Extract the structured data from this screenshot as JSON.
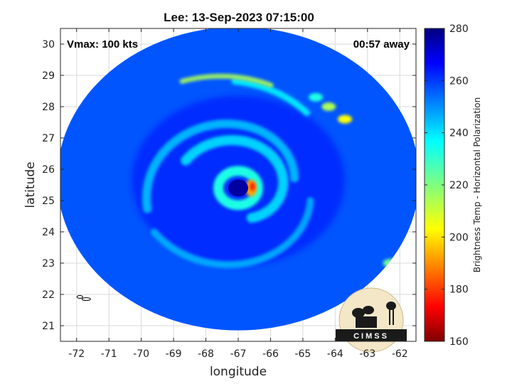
{
  "chart_data": {
    "type": "heatmap",
    "title": "Lee: 13-Sep-2023 07:15:00",
    "annotations": {
      "vmax": "Vmax: 100 kts",
      "time_away": "00:57 away"
    },
    "xlabel": "longitude",
    "ylabel": "latitude",
    "xlim": [
      -72.5,
      -61.5
    ],
    "ylim": [
      20.5,
      30.5
    ],
    "xticks": [
      -72,
      -71,
      -70,
      -69,
      -68,
      -67,
      -66,
      -65,
      -64,
      -63,
      -62
    ],
    "yticks": [
      21,
      22,
      23,
      24,
      25,
      26,
      27,
      28,
      29,
      30
    ],
    "grid": true,
    "colorbar": {
      "label": "Brightness Temp - Horizontal Polarization",
      "range": [
        160,
        280
      ],
      "ticks": [
        160,
        180,
        200,
        220,
        240,
        260,
        280
      ],
      "colormap": "jet"
    },
    "swath": {
      "center_lon": -67.0,
      "center_lat": 25.7,
      "radius_deg_lon": 5.6,
      "radius_deg_lat": 4.85
    },
    "storm_center": {
      "lon": -67.0,
      "lat": 25.4
    },
    "background_tb": 255
  },
  "logo": {
    "text": "CIMSS"
  },
  "colors": {
    "background": "#ffffff",
    "grid": "#d9d9d9",
    "land_outline": "#000000"
  }
}
